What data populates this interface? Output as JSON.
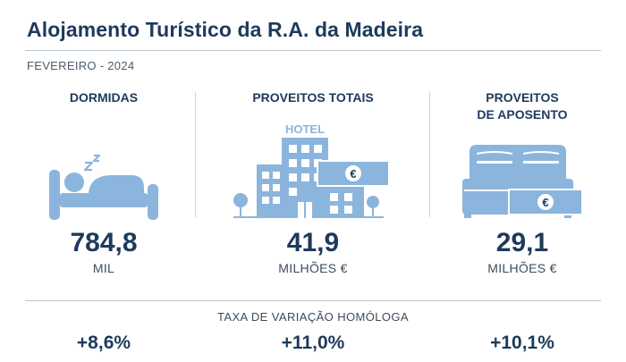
{
  "header": {
    "title": "Alojamento Turístico da R.A. da Madeira",
    "period": "FEVEREIRO - 2024"
  },
  "columns": [
    {
      "heading": "DORMIDAS",
      "value": "784,8",
      "unit": "MIL",
      "icon": "sleeping-person-bed-icon"
    },
    {
      "heading": "PROVEITOS TOTAIS",
      "value": "41,9",
      "unit": "MILHÕES €",
      "icon": "hotel-building-euro-icon",
      "icon_text": "HOTEL",
      "currency_symbol": "€"
    },
    {
      "heading_line1": "PROVEITOS",
      "heading_line2": "DE APOSENTO",
      "value": "29,1",
      "unit": "MILHÕES €",
      "icon": "double-bed-euro-icon",
      "currency_symbol": "€"
    }
  ],
  "variation": {
    "label": "TAXA DE VARIAÇÃO HOMÓLOGA",
    "values": [
      "+8,6%",
      "+11,0%",
      "+10,1%"
    ]
  },
  "colors": {
    "primary": "#1e3a5c",
    "icon": "#8bb5dc",
    "divider": "#f3d58a",
    "rule": "#b9c4cf"
  }
}
